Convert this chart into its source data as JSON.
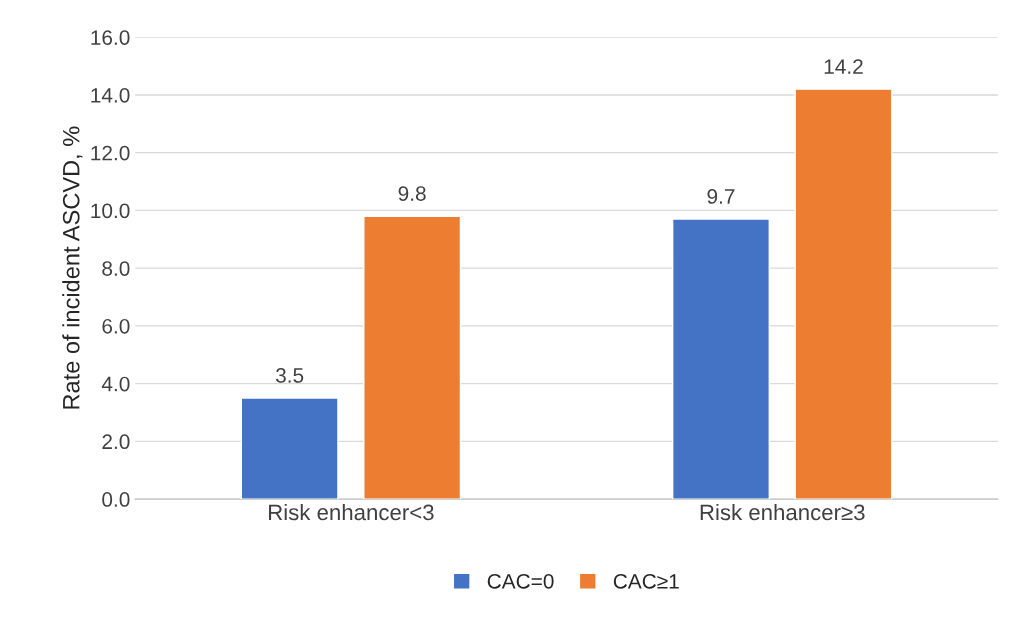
{
  "chart_data": {
    "type": "bar",
    "ylabel": "Rate of incident ASCVD, %",
    "categories": [
      "Risk enhancer<3",
      "Risk enhancer≥3"
    ],
    "series": [
      {
        "name": "CAC=0",
        "color": "#4472c4",
        "values": [
          3.5,
          9.7
        ]
      },
      {
        "name": "CAC≥1",
        "color": "#ed7d31",
        "values": [
          9.8,
          14.2
        ]
      }
    ],
    "ylim": [
      0,
      16
    ],
    "yticks": [
      {
        "value": 0,
        "label": "0.0"
      },
      {
        "value": 2,
        "label": "2.0"
      },
      {
        "value": 4,
        "label": "4.0"
      },
      {
        "value": 6,
        "label": "6.0"
      },
      {
        "value": 8,
        "label": "8.0"
      },
      {
        "value": 10,
        "label": "10.0"
      },
      {
        "value": 12,
        "label": "12.0"
      },
      {
        "value": 14,
        "label": "14.0"
      },
      {
        "value": 16,
        "label": "16.0"
      }
    ],
    "grid": "y",
    "legend": "bottom",
    "data_labels": true
  }
}
